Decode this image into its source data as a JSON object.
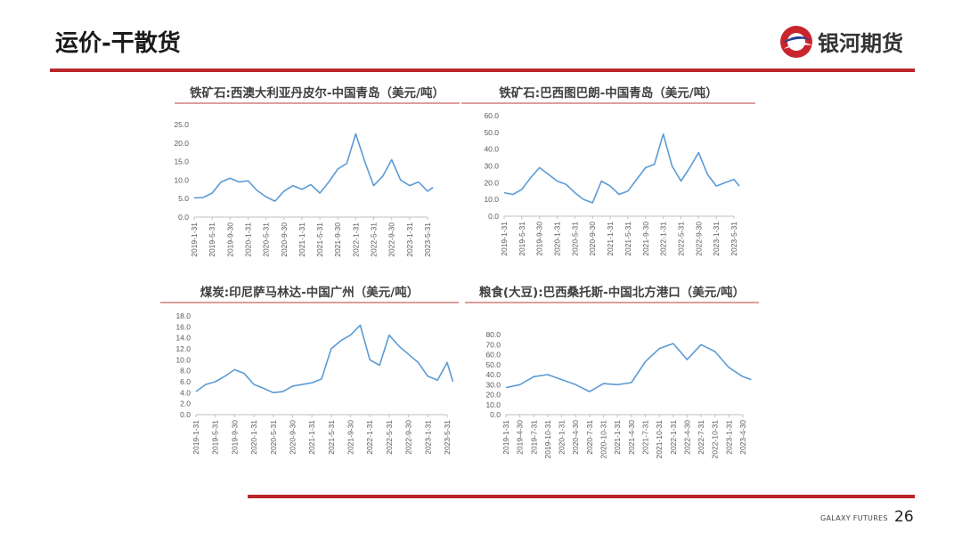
{
  "header": {
    "title": "运价-干散货",
    "brand": "银河期货"
  },
  "footer": {
    "brand": "GALAXY FUTURES",
    "page": "26"
  },
  "colors": {
    "accent": "#b8262a",
    "series": "#5b9bd5"
  },
  "chart_data": [
    {
      "type": "line",
      "title": "铁矿石:西澳大利亚丹皮尔-中国青岛（美元/吨）",
      "ylim": [
        0,
        25
      ],
      "yticks": [
        "0.0",
        "5.0",
        "10.0",
        "15.0",
        "20.0",
        "25.0"
      ],
      "categories": [
        "2019-1-31",
        "2019-5-31",
        "2019-9-30",
        "2020-1-31",
        "2020-5-31",
        "2020-9-30",
        "2021-1-31",
        "2021-5-31",
        "2021-9-30",
        "2022-1-31",
        "2022-5-31",
        "2022-9-30",
        "2023-1-31",
        "2023-5-31"
      ],
      "series": [
        {
          "name": "铁矿石:西澳大利亚丹皮尔-中国青岛",
          "x": [
            0,
            0.5,
            1,
            1.5,
            2,
            2.5,
            3,
            3.5,
            4,
            4.5,
            5,
            5.5,
            6,
            6.5,
            7,
            7.5,
            8,
            8.5,
            9,
            9.5,
            10,
            10.5,
            11,
            11.5,
            12,
            12.5,
            13,
            13.3
          ],
          "values": [
            5.2,
            5.3,
            6.5,
            9.5,
            10.5,
            9.5,
            9.8,
            7.2,
            5.5,
            4.3,
            7.0,
            8.5,
            7.5,
            8.8,
            6.5,
            9.5,
            13.0,
            14.5,
            22.5,
            15.0,
            8.5,
            11.0,
            15.5,
            10.0,
            8.5,
            9.5,
            7.0,
            8.0
          ]
        }
      ]
    },
    {
      "type": "line",
      "title": "铁矿石:巴西图巴朗-中国青岛（美元/吨）",
      "ylim": [
        0,
        60
      ],
      "yticks": [
        "0.0",
        "10.0",
        "20.0",
        "30.0",
        "40.0",
        "50.0",
        "60.0"
      ],
      "categories": [
        "2019-1-31",
        "2019-5-31",
        "2019-9-30",
        "2020-1-31",
        "2020-5-31",
        "2020-9-30",
        "2021-1-31",
        "2021-5-31",
        "2021-9-30",
        "2022-1-31",
        "2022-5-31",
        "2022-9-30",
        "2023-1-31",
        "2023-5-31"
      ],
      "series": [
        {
          "name": "铁矿石:巴西图巴朗-中国青岛",
          "x": [
            0,
            0.5,
            1,
            1.5,
            2,
            2.5,
            3,
            3.5,
            4,
            4.5,
            5,
            5.5,
            6,
            6.5,
            7,
            7.5,
            8,
            8.5,
            9,
            9.5,
            10,
            10.5,
            11,
            11.5,
            12,
            12.5,
            13,
            13.3
          ],
          "values": [
            14,
            13,
            16,
            23,
            29,
            25,
            21,
            19,
            14,
            10,
            8,
            21,
            18,
            13,
            15,
            22,
            29,
            31,
            49,
            30,
            21,
            29,
            38,
            25,
            18,
            20,
            22,
            18
          ]
        }
      ]
    },
    {
      "type": "line",
      "title": "煤炭:印尼萨马林达-中国广州（美元/吨）",
      "ylim": [
        0,
        18
      ],
      "yticks": [
        "0.0",
        "2.0",
        "4.0",
        "6.0",
        "8.0",
        "10.0",
        "12.0",
        "14.0",
        "16.0",
        "18.0"
      ],
      "categories": [
        "2019-1-31",
        "2019-5-31",
        "2019-9-30",
        "2020-1-31",
        "2020-5-31",
        "2020-9-30",
        "2021-1-31",
        "2021-5-31",
        "2021-9-30",
        "2022-1-31",
        "2022-5-31",
        "2022-9-30",
        "2023-1-31",
        "2023-5-31"
      ],
      "series": [
        {
          "name": "煤炭:印尼萨马林达-中国广州",
          "x": [
            0,
            0.5,
            1,
            1.5,
            2,
            2.5,
            3,
            3.5,
            4,
            4.5,
            5,
            5.5,
            6,
            6.5,
            7,
            7.5,
            8,
            8.5,
            9,
            9.5,
            10,
            10.5,
            11,
            11.5,
            12,
            12.5,
            13,
            13.3
          ],
          "values": [
            4.2,
            5.5,
            6.0,
            7.0,
            8.2,
            7.5,
            5.5,
            4.8,
            4.0,
            4.2,
            5.2,
            5.5,
            5.8,
            6.5,
            12.0,
            13.5,
            14.5,
            16.3,
            10.0,
            9.0,
            14.5,
            12.5,
            11.0,
            9.5,
            7.0,
            6.3,
            9.5,
            6.0
          ]
        }
      ]
    },
    {
      "type": "line",
      "title": "粮食(大豆):巴西桑托斯-中国北方港口（美元/吨）",
      "ylim": [
        0,
        80
      ],
      "yticks": [
        "0.0",
        "10.0",
        "20.0",
        "30.0",
        "40.0",
        "50.0",
        "60.0",
        "70.0",
        "80.0"
      ],
      "categories": [
        "2019-1-31",
        "2019-4-30",
        "2019-7-31",
        "2019-10-31",
        "2020-1-31",
        "2020-4-30",
        "2020-7-31",
        "2020-10-31",
        "2021-1-31",
        "2021-4-30",
        "2021-7-31",
        "2021-10-31",
        "2022-1-31",
        "2022-4-30",
        "2022-7-31",
        "2022-10-31",
        "2023-1-31",
        "2023-4-30"
      ],
      "series": [
        {
          "name": "粮食(大豆):巴西桑托斯-中国北方港口",
          "x": [
            0,
            1,
            2,
            3,
            4,
            5,
            6,
            7,
            8,
            9,
            10,
            11,
            12,
            13,
            14,
            15,
            16,
            17,
            17.6
          ],
          "values": [
            27,
            30,
            38,
            40,
            35,
            30,
            23,
            31,
            30,
            32,
            53,
            66,
            71,
            55,
            70,
            63,
            47,
            38,
            35
          ]
        }
      ]
    }
  ]
}
